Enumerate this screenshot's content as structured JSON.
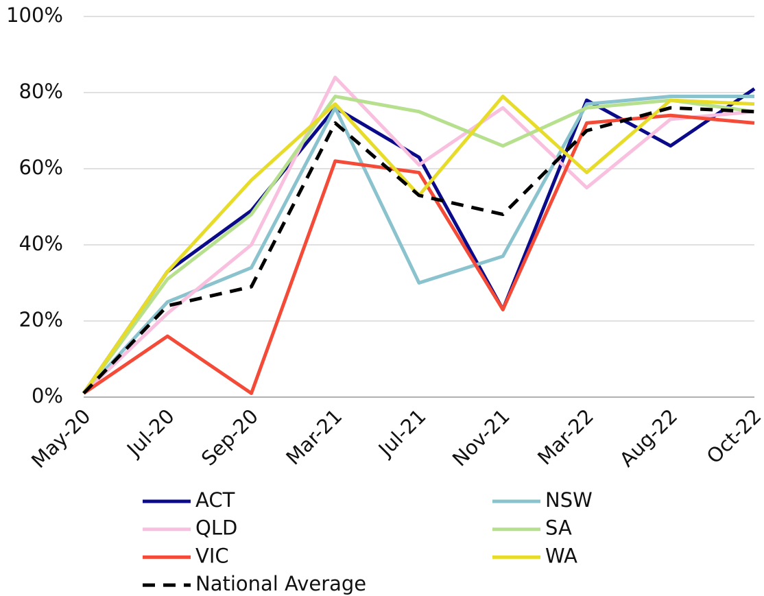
{
  "chart_data": {
    "type": "line",
    "categories": [
      "May-20",
      "Jul-20",
      "Sep-20",
      "Mar-21",
      "Jul-21",
      "Nov-21",
      "Mar-22",
      "Aug-22",
      "Oct-22"
    ],
    "series": [
      {
        "name": "ACT",
        "color": "#0b0b8a",
        "values": [
          1,
          33,
          49,
          76,
          63,
          23,
          78,
          66,
          81
        ]
      },
      {
        "name": "NSW",
        "color": "#8ac3cd",
        "values": [
          1,
          25,
          34,
          76,
          30,
          37,
          77,
          79,
          79
        ]
      },
      {
        "name": "QLD",
        "color": "#f8c0de",
        "values": [
          1,
          22,
          40,
          84,
          61,
          76,
          55,
          73,
          75
        ]
      },
      {
        "name": "SA",
        "color": "#b6e08e",
        "values": [
          1,
          31,
          48,
          79,
          75,
          66,
          76,
          78,
          75
        ]
      },
      {
        "name": "VIC",
        "color": "#f44a38",
        "values": [
          1,
          16,
          1,
          62,
          59,
          23,
          72,
          74,
          72
        ]
      },
      {
        "name": "WA",
        "color": "#e8dc2a",
        "values": [
          1,
          33,
          57,
          77,
          53,
          79,
          59,
          78,
          77
        ]
      },
      {
        "name": "National Average",
        "color": "#000000",
        "dashed": true,
        "values": [
          1,
          24,
          29,
          72,
          53,
          48,
          70,
          76,
          75
        ]
      }
    ],
    "ylim": [
      0,
      100
    ],
    "yticks": [
      {
        "value": 0,
        "label": "0%"
      },
      {
        "value": 20,
        "label": "20%"
      },
      {
        "value": 40,
        "label": "40%"
      },
      {
        "value": 60,
        "label": "60%"
      },
      {
        "value": 80,
        "label": "80%"
      },
      {
        "value": 100,
        "label": "100%"
      }
    ],
    "grid": true
  }
}
